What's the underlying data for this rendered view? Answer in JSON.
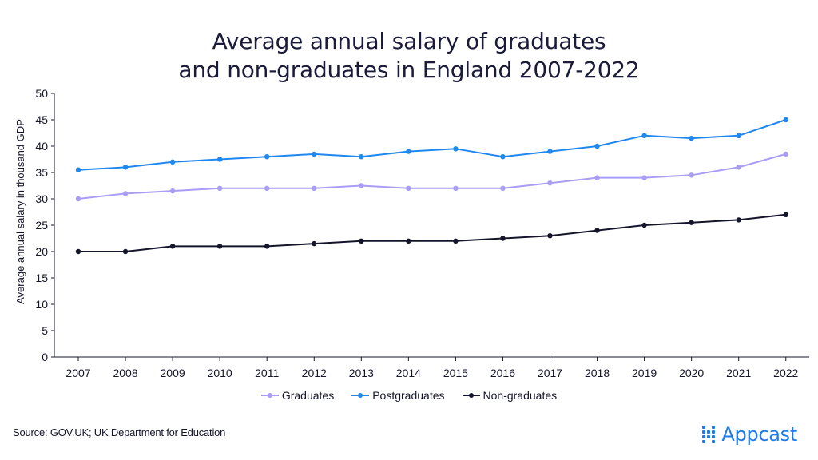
{
  "title_line1": "Average annual salary of graduates",
  "title_line2": "and non-graduates in England 2007-2022",
  "source": "Source: GOV.UK; UK Department for Education",
  "brand": {
    "name": "Appcast",
    "icon": "appcast-dots-icon"
  },
  "colors": {
    "graduates": "#a99df5",
    "postgraduates": "#1f87f0",
    "non_graduates": "#14142b",
    "axis": "#14142b",
    "brand": "#1f7be8"
  },
  "chart_data": {
    "type": "line",
    "title": "Average annual salary of graduates and non-graduates in England 2007-2022",
    "xlabel": "",
    "ylabel": "Average annual salary in thousand GDP",
    "ylim": [
      0,
      50
    ],
    "yticks": [
      "0",
      "5",
      "10",
      "15",
      "20",
      "25",
      "30",
      "35",
      "40",
      "45",
      "50"
    ],
    "grid": false,
    "legend_position": "bottom",
    "x": [
      "2007",
      "2008",
      "2009",
      "2010",
      "2011",
      "2012",
      "2013",
      "2014",
      "2015",
      "2016",
      "2017",
      "2018",
      "2019",
      "2020",
      "2021",
      "2022"
    ],
    "series": [
      {
        "name": "Graduates",
        "color": "#a99df5",
        "values": [
          30,
          31,
          31.5,
          32,
          32,
          32,
          32.5,
          32,
          32,
          32,
          33,
          34,
          34,
          34.5,
          36,
          38.5
        ]
      },
      {
        "name": "Postgraduates",
        "color": "#1f87f0",
        "values": [
          35.5,
          36,
          37,
          37.5,
          38,
          38.5,
          38,
          39,
          39.5,
          38,
          39,
          40,
          42,
          41.5,
          42,
          45
        ]
      },
      {
        "name": "Non-graduates",
        "color": "#14142b",
        "values": [
          20,
          20,
          21,
          21,
          21,
          21.5,
          22,
          22,
          22,
          22.5,
          23,
          24,
          25,
          25.5,
          26,
          27
        ]
      }
    ]
  }
}
